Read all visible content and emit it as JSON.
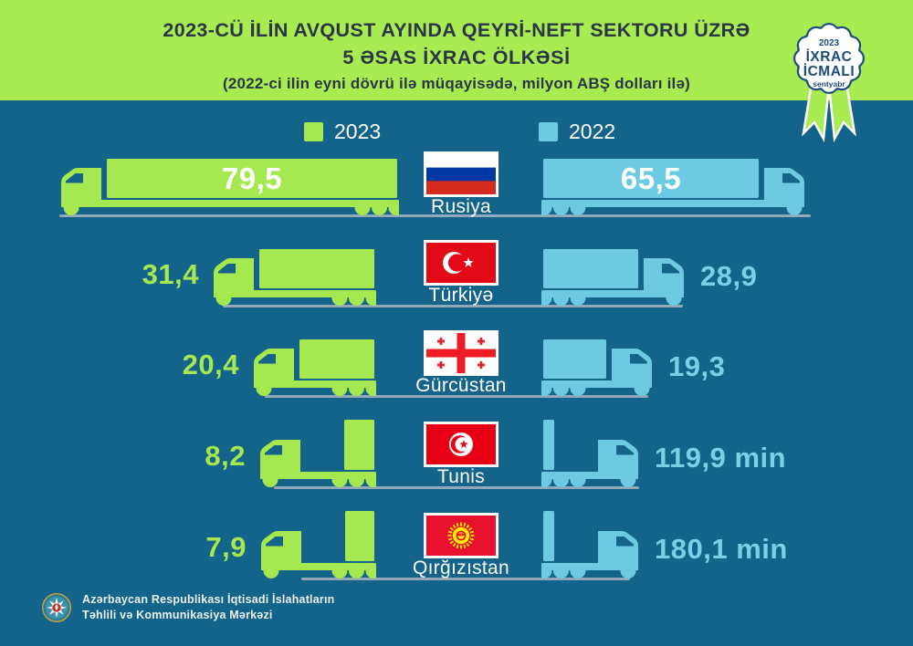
{
  "header": {
    "title_line1": "2023-CÜ İLİN AVQUST AYINDA QEYRİ-NEFT SEKTORU ÜZRƏ",
    "title_line2": "5 ƏSAS İXRAC ÖLKƏSİ",
    "subtitle": "(2022-ci ilin eyni dövrü ilə müqayisədə, milyon ABŞ dolları ilə)"
  },
  "badge": {
    "year": "2023",
    "line1": "İXRAC",
    "line2": "İCMALI",
    "month": "sentyabr"
  },
  "legend": [
    {
      "label": "2023",
      "color": "#A5E84F"
    },
    {
      "label": "2022",
      "color": "#6CCAE3"
    }
  ],
  "footer": {
    "org_line1": "Azərbaycan Respublikası İqtisadi İslahatların",
    "org_line2": "Təhlili və Kommunikasiya Mərkəzi"
  },
  "colors": {
    "background": "#14638A",
    "header_green": "#A9EC52",
    "truck_green": "#A5E84F",
    "truck_blue": "#6CCAE3",
    "value_blue": "#7AD1E7",
    "road": "#93A9B7",
    "badge_navy": "#1B4C7C",
    "title_text": "#2A3547"
  },
  "chart_data": {
    "type": "bar",
    "title": "2023-cü ilin avqust ayında qeyri-neft sektoru üzrə 5 əsas ixrac ölkəsi",
    "subtitle": "2022-ci ilin eyni dövrü ilə müqayisədə, milyon ABŞ dolları ilə",
    "unit": "milyon ABŞ dolları",
    "legend_position": "top",
    "categories": [
      "Rusiya",
      "Türkiyə",
      "Gürcüstan",
      "Tunis",
      "Qırğızıstan"
    ],
    "flags": [
      "russia",
      "turkey",
      "georgia",
      "tunisia",
      "kyrgyzstan"
    ],
    "series": [
      {
        "name": "2023",
        "values": [
          79.5,
          31.4,
          20.4,
          8.2,
          7.9
        ],
        "display": [
          "79,5",
          "31,4",
          "20,4",
          "8,2",
          "7,9"
        ]
      },
      {
        "name": "2022",
        "values": [
          65.5,
          28.9,
          19.3,
          0.1199,
          0.1801
        ],
        "display": [
          "65,5",
          "28,9",
          "19,3",
          "119,9 min",
          "180,1 min"
        ]
      }
    ]
  }
}
